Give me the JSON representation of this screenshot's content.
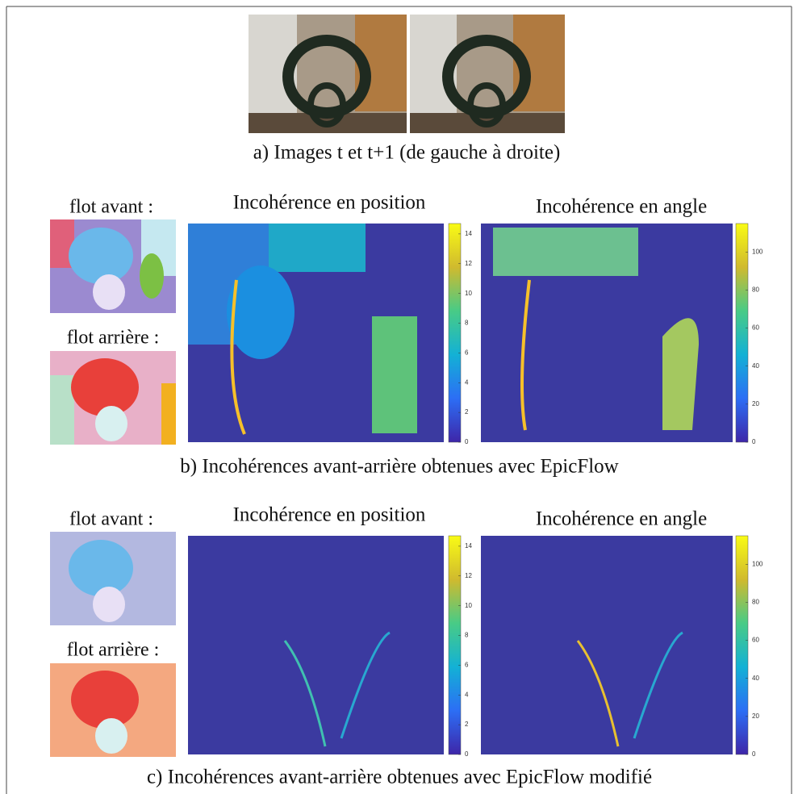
{
  "panel_a": {
    "caption": "a) Images t et t+1 (de gauche à droite)"
  },
  "panel_b": {
    "forward_label": "flot avant :",
    "backward_label": "flot arrière :",
    "position_title": "Incohérence en position",
    "angle_title": "Incohérence en angle",
    "position_range": [
      0,
      14.7
    ],
    "position_ticks": [
      0,
      2,
      4,
      6,
      8,
      10,
      12,
      14
    ],
    "angle_range": [
      0,
      115
    ],
    "angle_ticks": [
      0,
      20,
      40,
      60,
      80,
      100
    ],
    "caption": "b) Incohérences avant-arrière obtenues avec EpicFlow"
  },
  "panel_c": {
    "forward_label": "flot avant :",
    "backward_label": "flot arrière :",
    "position_title": "Incohérence en position",
    "angle_title": "Incohérence en angle",
    "position_range": [
      0,
      14.7
    ],
    "position_ticks": [
      0,
      2,
      4,
      6,
      8,
      10,
      12,
      14
    ],
    "angle_range": [
      0,
      115
    ],
    "angle_ticks": [
      0,
      20,
      40,
      60,
      80,
      100
    ],
    "caption": "c) Incohérences avant-arrière obtenues avec EpicFlow modifié"
  }
}
